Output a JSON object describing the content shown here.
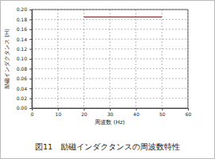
{
  "chart_data": {
    "type": "line",
    "title": "図11　励磁インダクタンスの周波数特性",
    "x_label": "周波数 (Hz)",
    "y_label": "励磁インダクタンス (H)",
    "x": [
      20,
      50
    ],
    "values": [
      0.185,
      0.185
    ],
    "color": "#ff0000",
    "xlim": [
      0,
      60
    ],
    "xticks": [
      0,
      10,
      20,
      30,
      40,
      50,
      60
    ],
    "ylim": [
      0,
      0.2
    ],
    "yticks": [
      {
        "value": 0,
        "label": "0.00"
      },
      {
        "value": 0.02,
        "label": "0.02"
      },
      {
        "value": 0.04,
        "label": "0.04"
      },
      {
        "value": 0.06,
        "label": "0.06"
      },
      {
        "value": 0.08,
        "label": "0.08"
      },
      {
        "value": 0.1,
        "label": "0.10"
      },
      {
        "value": 0.12,
        "label": "0.12"
      },
      {
        "value": 0.14,
        "label": "0.14"
      },
      {
        "value": 0.16,
        "label": "0.16"
      },
      {
        "value": 0.18,
        "label": "0.18"
      },
      {
        "value": 0.2,
        "label": "0.20"
      }
    ],
    "grid": true
  }
}
